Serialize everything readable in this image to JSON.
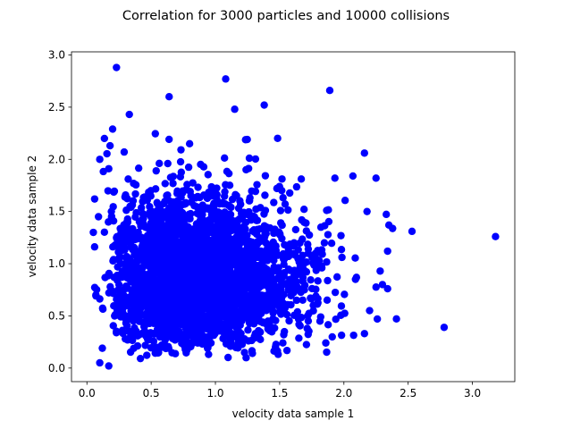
{
  "chart_data": {
    "type": "scatter",
    "title": "Correlation for 3000 particles and 10000 collisions",
    "xlabel": "velocity data sample 1",
    "ylabel": "velocity data sample 2",
    "xlim": [
      -0.12,
      3.33
    ],
    "ylim": [
      -0.13,
      3.03
    ],
    "xticks": [
      "0.0",
      "0.5",
      "1.0",
      "1.5",
      "2.0",
      "2.5",
      "3.0"
    ],
    "yticks": [
      "0.0",
      "0.5",
      "1.0",
      "1.5",
      "2.0",
      "2.5",
      "3.0"
    ],
    "grid": false,
    "marker_color": "#0000ff",
    "n_points": 3000,
    "series": [
      {
        "values_note_excluded": false,
        "points": [
          [
            0.23,
            2.88
          ],
          [
            1.08,
            2.77
          ],
          [
            0.64,
            2.6
          ],
          [
            1.89,
            2.66
          ],
          [
            0.33,
            2.43
          ],
          [
            1.38,
            2.52
          ],
          [
            1.15,
            2.48
          ],
          [
            0.29,
            2.07
          ],
          [
            0.2,
            2.29
          ],
          [
            3.18,
            1.26
          ],
          [
            2.78,
            0.39
          ],
          [
            2.53,
            1.31
          ],
          [
            2.35,
            1.37
          ],
          [
            2.34,
            1.12
          ],
          [
            2.25,
            1.82
          ],
          [
            2.16,
            2.06
          ],
          [
            2.07,
            1.84
          ],
          [
            1.93,
            1.82
          ],
          [
            2.26,
            0.47
          ],
          [
            2.34,
            0.76
          ],
          [
            2.16,
            0.33
          ],
          [
            2.3,
            0.8
          ],
          [
            2.2,
            0.55
          ],
          [
            2.18,
            1.5
          ],
          [
            2.09,
            0.85
          ],
          [
            0.05,
            1.3
          ],
          [
            0.07,
            0.7
          ],
          [
            0.1,
            0.05
          ],
          [
            0.12,
            0.19
          ],
          [
            0.06,
            1.62
          ],
          [
            0.09,
            1.45
          ],
          [
            0.1,
            2.0
          ],
          [
            0.17,
            1.91
          ],
          [
            0.18,
            2.13
          ],
          [
            0.17,
            0.02
          ]
        ]
      }
    ]
  }
}
